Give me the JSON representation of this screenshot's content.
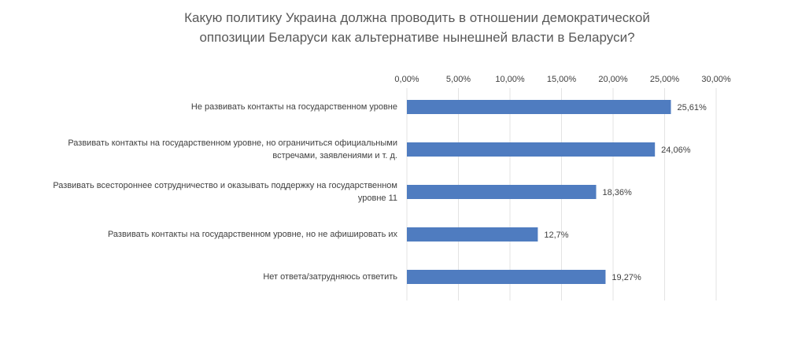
{
  "chart_data": {
    "type": "bar",
    "orientation": "horizontal",
    "title": "Какую политику Украина должна проводить в отношении демократической оппозиции Беларуси как альтернативе нынешней власти в Беларуси?",
    "categories": [
      "Не развивать контакты на государственном уровне",
      "Развивать контакты на государственном уровне, но ограничиться официальными встречами, заявлениями и т. д.",
      "Развивать всестороннее сотрудничество и оказывать поддержку на государственном уровне 11",
      "Развивать контакты на государственном уровне, но не афишировать их",
      "Нет ответа/затрудняюсь ответить"
    ],
    "values": [
      25.61,
      24.06,
      18.36,
      12.7,
      19.27
    ],
    "value_labels": [
      "25,61%",
      "24,06%",
      "18,36%",
      "12,7%",
      "19,27%"
    ],
    "color": "#4f7cc0",
    "xlim": [
      0,
      30
    ],
    "xticks": [
      {
        "value": 0,
        "label": "0,00%"
      },
      {
        "value": 5,
        "label": "5,00%"
      },
      {
        "value": 10,
        "label": "10,00%"
      },
      {
        "value": 15,
        "label": "15,00%"
      },
      {
        "value": 20,
        "label": "20,00%"
      },
      {
        "value": 25,
        "label": "25,00%"
      },
      {
        "value": 30,
        "label": "30,00%"
      }
    ],
    "grid": true
  }
}
